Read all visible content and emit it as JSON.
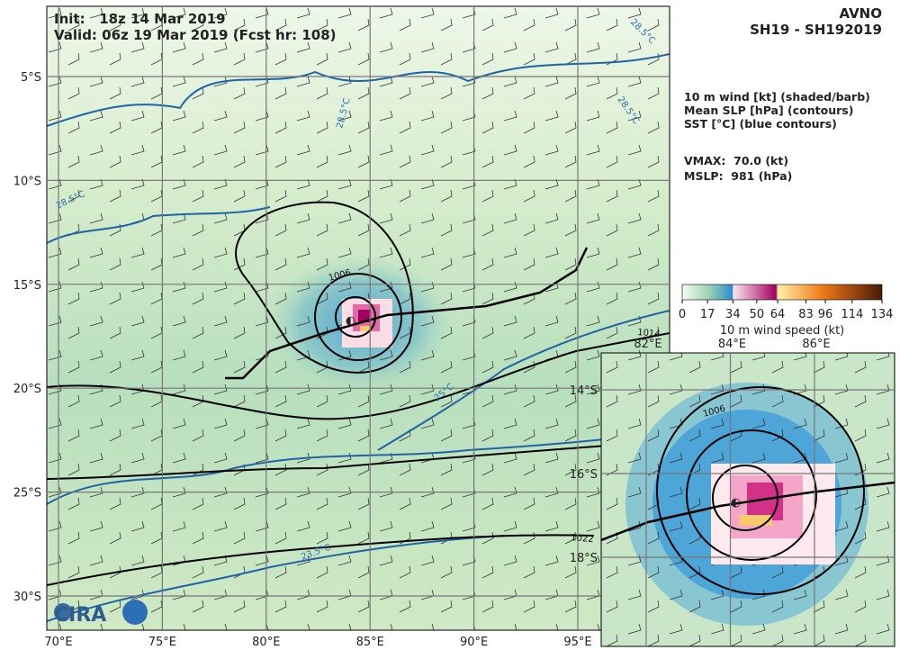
{
  "header": {
    "init": "Init:   18z 14 Mar 2019",
    "valid": "Valid: 06z 19 Mar 2019 (Fcst hr: 108)",
    "model": "AVNO",
    "storm": "SH19 - SH192019"
  },
  "legend": {
    "fields": [
      "10 m wind [kt] (shaded/barb)",
      "Mean SLP [hPa] (contours)",
      "SST [°C] (blue contours)"
    ],
    "vmax": "VMAX:  70.0 (kt)",
    "mslp": "MSLP:  981 (hPa)"
  },
  "colorbar": {
    "ticks": [
      0,
      17,
      34,
      50,
      64,
      83,
      96,
      114,
      134
    ],
    "label": "10 m wind speed (kt)"
  },
  "map": {
    "lat_labels": [
      "5°S",
      "10°S",
      "15°S",
      "20°S",
      "25°S",
      "30°S"
    ],
    "lon_labels": [
      "70°E",
      "75°E",
      "80°E",
      "85°E",
      "90°E",
      "95°E"
    ],
    "contour_labels": [
      "28.5°C",
      "28.5°C",
      "28.5°C",
      "28.5°C",
      "25°C",
      "23.5°C",
      "1006",
      "1014",
      "1022"
    ],
    "logo": "CIRA"
  },
  "inset": {
    "lon_labels": [
      "82°E",
      "84°E",
      "86°E"
    ],
    "lat_labels": [
      "14°S",
      "16°S",
      "18°S"
    ],
    "contour_labels": [
      "1006"
    ]
  }
}
